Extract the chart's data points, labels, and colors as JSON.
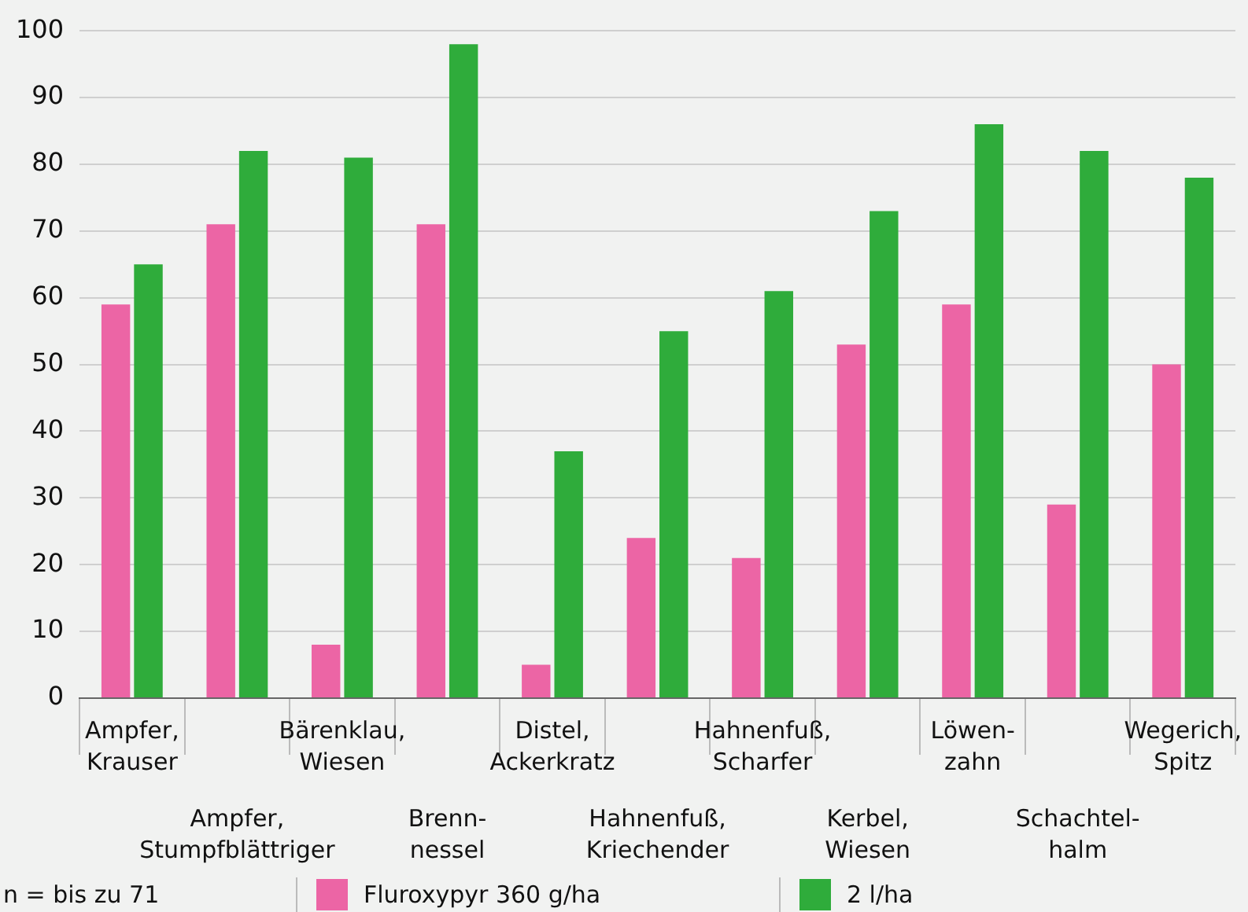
{
  "chart_data": {
    "type": "bar",
    "categories": [
      "Ampfer,\nKrauser",
      "Ampfer,\nStumpfblättriger",
      "Bärenklau,\nWiesen",
      "Brenn-\nnessel",
      "Distel,\nAckerkratz",
      "Hahnenfuß,\nKriechender",
      "Hahnenfuß,\nScharfer",
      "Kerbel,\nWiesen",
      "Löwen-\nzahn",
      "Schachtel-\nhalm",
      "Wegerich,\nSpitz"
    ],
    "series": [
      {
        "name": "Fluroxypyr 360 g/ha",
        "color": "#ec65a5",
        "values": [
          59,
          71,
          8,
          71,
          5,
          24,
          21,
          53,
          59,
          29,
          50
        ]
      },
      {
        "name": "2 l/ha",
        "color": "#2fac3b",
        "values": [
          65,
          82,
          81,
          98,
          37,
          55,
          61,
          73,
          86,
          82,
          78
        ]
      }
    ],
    "ylim": [
      0,
      100
    ],
    "yticks": [
      0,
      10,
      20,
      30,
      40,
      50,
      60,
      70,
      80,
      90,
      100
    ],
    "grid": "y",
    "legend": "bottom",
    "annotations": [
      "n = bis zu 71"
    ]
  }
}
